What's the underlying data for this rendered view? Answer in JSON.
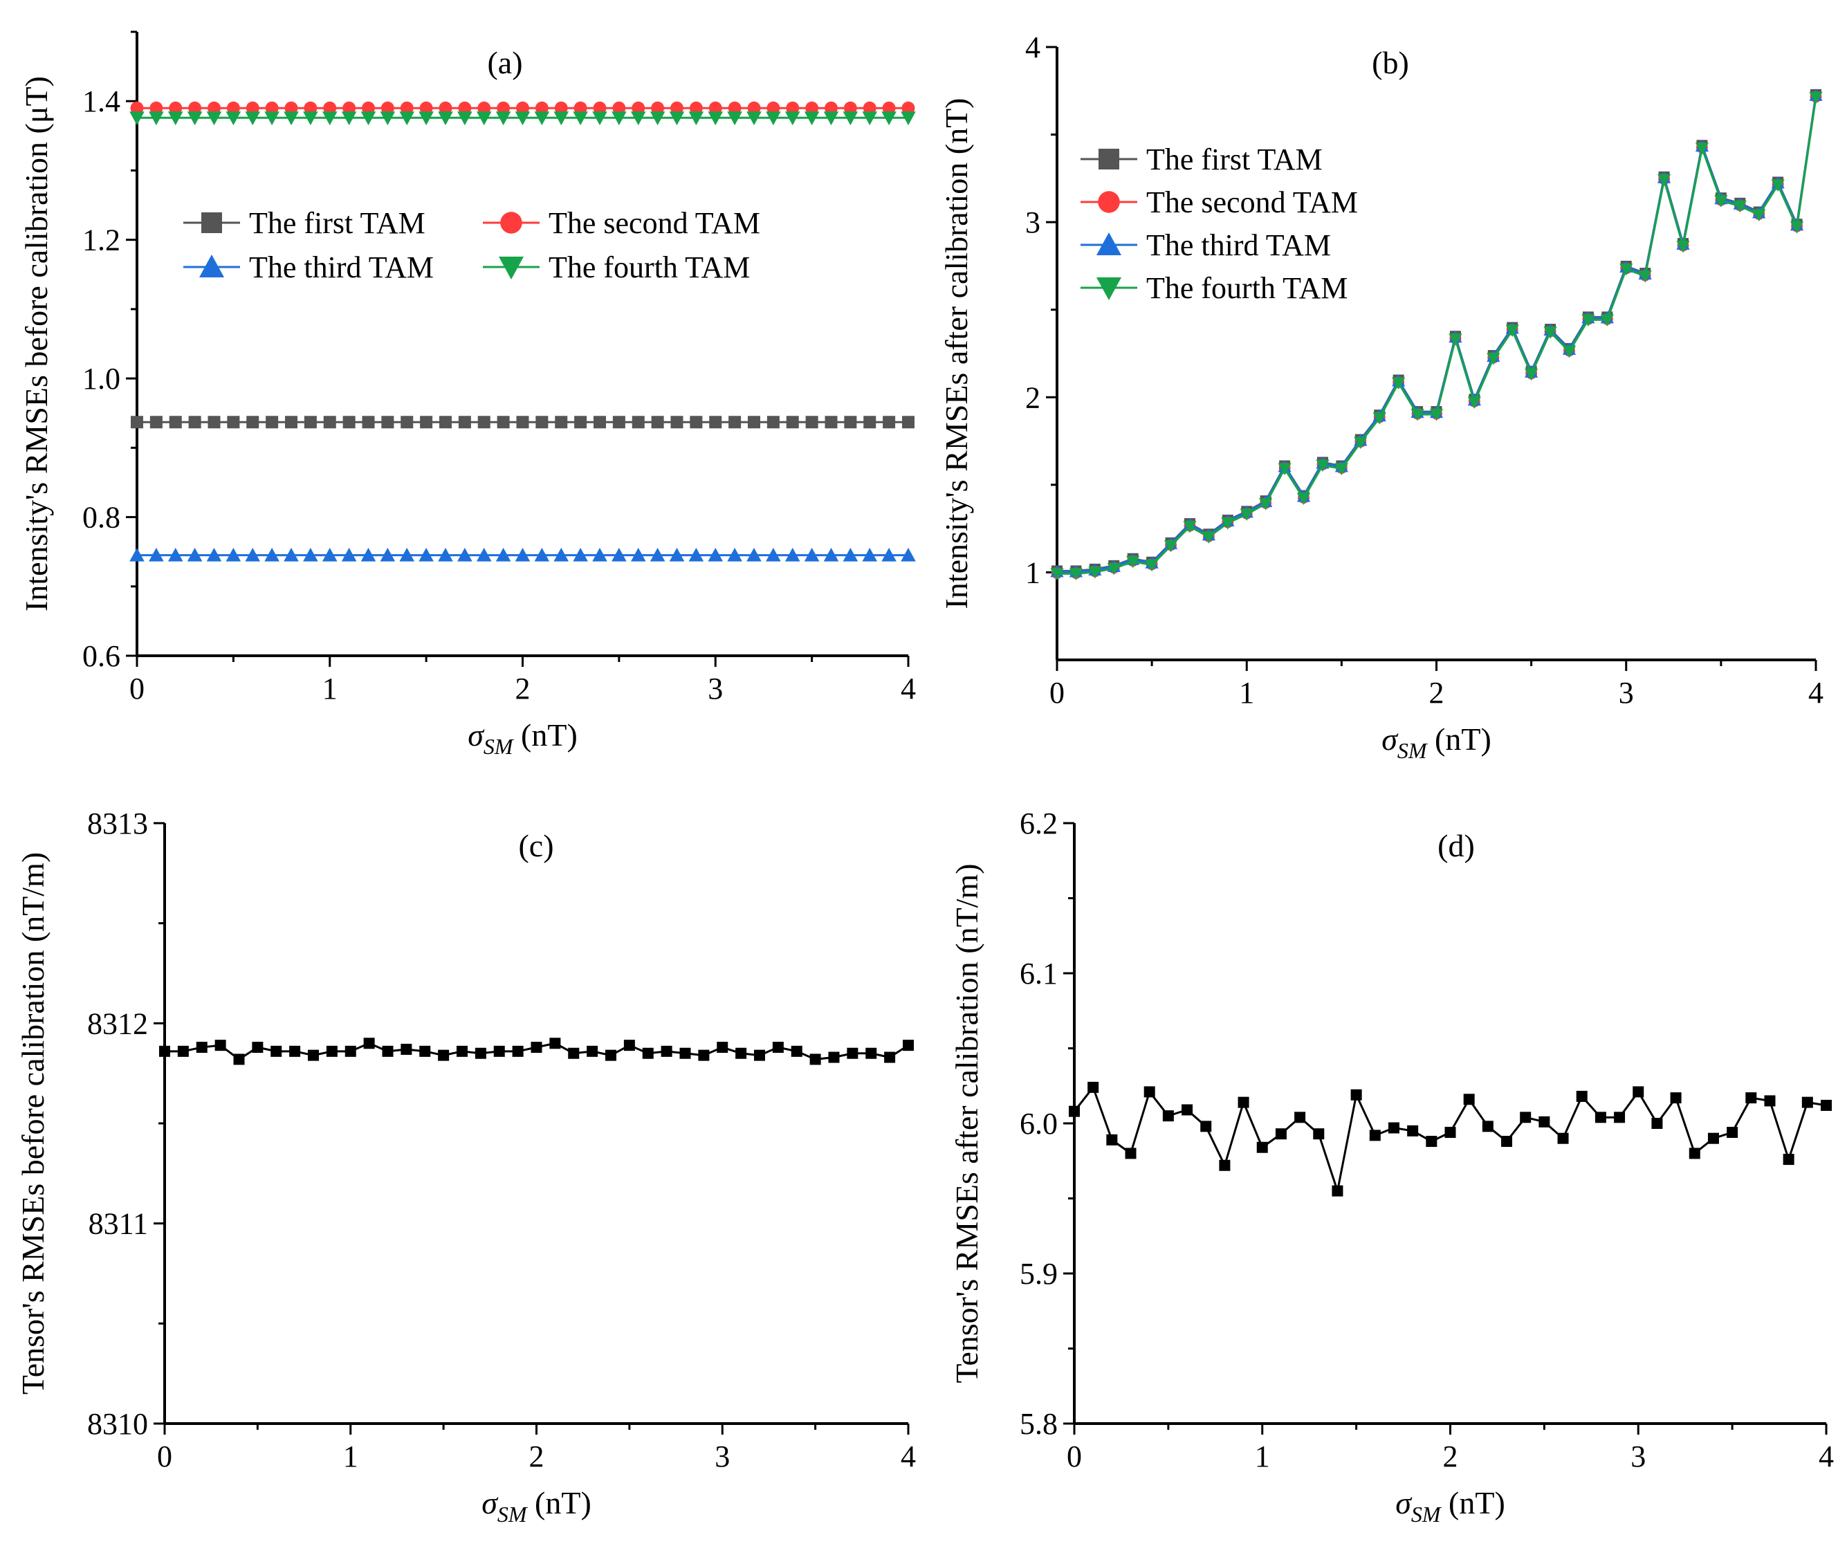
{
  "chart_data": [
    {
      "type": "line",
      "panel": "(a)",
      "xlabel": "σSM (nT)",
      "xlabel_main": "σ",
      "xlabel_sub": "SM",
      "xlabel_unit": " (nT)",
      "ylabel": "Intensity's RMSEs before calibration (μT)",
      "xlim": [
        0,
        4
      ],
      "ylim": [
        0.6,
        1.5
      ],
      "x_ticks": [
        "0",
        "1",
        "2",
        "3",
        "4"
      ],
      "y_ticks": [
        "0.6",
        "0.8",
        "1.0",
        "1.2",
        "1.4"
      ],
      "legend_placement": "upper-middle, two columns",
      "series": [
        {
          "name": "The first TAM",
          "color": "#555555",
          "marker": "square",
          "value": 0.937
        },
        {
          "name": "The second TAM",
          "color": "#ff3b3b",
          "marker": "circle",
          "value": 1.39
        },
        {
          "name": "The third TAM",
          "color": "#1f6fdb",
          "marker": "triangle-up",
          "value": 0.745
        },
        {
          "name": "The fourth TAM",
          "color": "#17a34a",
          "marker": "triangle-down",
          "value": 1.376
        }
      ]
    },
    {
      "type": "line",
      "panel": "(b)",
      "xlabel": "σSM (nT)",
      "xlabel_main": "σ",
      "xlabel_sub": "SM",
      "xlabel_unit": " (nT)",
      "ylabel": "Intensity's RMSEs after calibration (nT)",
      "xlim": [
        0,
        4
      ],
      "ylim": [
        0.5,
        4.0
      ],
      "x_ticks": [
        "0",
        "1",
        "2",
        "3",
        "4"
      ],
      "y_ticks": [
        "1",
        "2",
        "3",
        "4"
      ],
      "legend_placement": "top-left",
      "x": [
        0,
        0.1,
        0.2,
        0.3,
        0.4,
        0.5,
        0.6,
        0.7,
        0.8,
        0.9,
        1.0,
        1.1,
        1.2,
        1.3,
        1.4,
        1.5,
        1.6,
        1.7,
        1.8,
        1.9,
        2.0,
        2.1,
        2.2,
        2.3,
        2.4,
        2.5,
        2.6,
        2.7,
        2.8,
        2.9,
        3.0,
        3.1,
        3.2,
        3.3,
        3.4,
        3.5,
        3.6,
        3.7,
        3.8,
        3.9,
        4.0
      ],
      "values": [
        1.0,
        1.0,
        1.01,
        1.03,
        1.07,
        1.05,
        1.16,
        1.27,
        1.21,
        1.29,
        1.34,
        1.4,
        1.6,
        1.43,
        1.62,
        1.6,
        1.75,
        1.89,
        2.09,
        1.91,
        1.91,
        2.34,
        1.98,
        2.23,
        2.39,
        2.14,
        2.38,
        2.27,
        2.45,
        2.45,
        2.74,
        2.7,
        3.25,
        2.87,
        3.43,
        3.13,
        3.1,
        3.05,
        3.22,
        2.98,
        3.72
      ],
      "series": [
        {
          "name": "The first TAM",
          "color": "#555555",
          "marker": "square"
        },
        {
          "name": "The second TAM",
          "color": "#ff3b3b",
          "marker": "circle"
        },
        {
          "name": "The third TAM",
          "color": "#1f6fdb",
          "marker": "triangle-up"
        },
        {
          "name": "The fourth TAM",
          "color": "#17a34a",
          "marker": "triangle-down"
        }
      ]
    },
    {
      "type": "line",
      "panel": "(c)",
      "xlabel": "σSM (nT)",
      "xlabel_main": "σ",
      "xlabel_sub": "SM",
      "xlabel_unit": " (nT)",
      "ylabel": "Tensor's RMSEs before calibration (nT/m)",
      "xlim": [
        0,
        4
      ],
      "ylim": [
        8310,
        8313
      ],
      "x_ticks": [
        "0",
        "1",
        "2",
        "3",
        "4"
      ],
      "y_ticks": [
        "8310",
        "8311",
        "8312",
        "8313"
      ],
      "x": [
        0,
        0.1,
        0.2,
        0.3,
        0.4,
        0.5,
        0.6,
        0.7,
        0.8,
        0.9,
        1.0,
        1.1,
        1.2,
        1.3,
        1.4,
        1.5,
        1.6,
        1.7,
        1.8,
        1.9,
        2.0,
        2.1,
        2.2,
        2.3,
        2.4,
        2.5,
        2.6,
        2.7,
        2.8,
        2.9,
        3.0,
        3.1,
        3.2,
        3.3,
        3.4,
        3.5,
        3.6,
        3.7,
        3.8,
        3.9,
        4.0
      ],
      "values": [
        8311.86,
        8311.86,
        8311.88,
        8311.89,
        8311.82,
        8311.88,
        8311.86,
        8311.86,
        8311.84,
        8311.86,
        8311.86,
        8311.9,
        8311.86,
        8311.87,
        8311.86,
        8311.84,
        8311.86,
        8311.85,
        8311.86,
        8311.86,
        8311.88,
        8311.9,
        8311.85,
        8311.86,
        8311.84,
        8311.89,
        8311.85,
        8311.86,
        8311.85,
        8311.84,
        8311.88,
        8311.85,
        8311.84,
        8311.88,
        8311.86,
        8311.82,
        8311.83,
        8311.85,
        8311.85,
        8311.83,
        8311.89
      ],
      "color": "#000000",
      "marker": "square"
    },
    {
      "type": "line",
      "panel": "(d)",
      "xlabel": "σSM (nT)",
      "xlabel_main": "σ",
      "xlabel_sub": "SM",
      "xlabel_unit": " (nT)",
      "ylabel": "Tensor's RMSEs after calibration (nT/m)",
      "xlim": [
        0,
        4
      ],
      "ylim": [
        5.8,
        6.2
      ],
      "x_ticks": [
        "0",
        "1",
        "2",
        "3",
        "4"
      ],
      "y_ticks": [
        "5.8",
        "5.9",
        "6.0",
        "6.1",
        "6.2"
      ],
      "x": [
        0,
        0.1,
        0.2,
        0.3,
        0.4,
        0.5,
        0.6,
        0.7,
        0.8,
        0.9,
        1.0,
        1.1,
        1.2,
        1.3,
        1.4,
        1.5,
        1.6,
        1.7,
        1.8,
        1.9,
        2.0,
        2.1,
        2.2,
        2.3,
        2.4,
        2.5,
        2.6,
        2.7,
        2.8,
        2.9,
        3.0,
        3.1,
        3.2,
        3.3,
        3.4,
        3.5,
        3.6,
        3.7,
        3.8,
        3.9,
        4.0
      ],
      "values": [
        6.008,
        6.024,
        5.989,
        5.98,
        6.021,
        6.005,
        6.009,
        5.998,
        5.972,
        6.014,
        5.984,
        5.993,
        6.004,
        5.993,
        5.955,
        6.019,
        5.992,
        5.997,
        5.995,
        5.988,
        5.994,
        6.016,
        5.998,
        5.988,
        6.004,
        6.001,
        5.99,
        6.018,
        6.004,
        6.004,
        6.021,
        6.0,
        6.017,
        5.98,
        5.99,
        5.994,
        6.017,
        6.015,
        5.976,
        6.014,
        6.012
      ],
      "color": "#000000",
      "marker": "square"
    }
  ]
}
